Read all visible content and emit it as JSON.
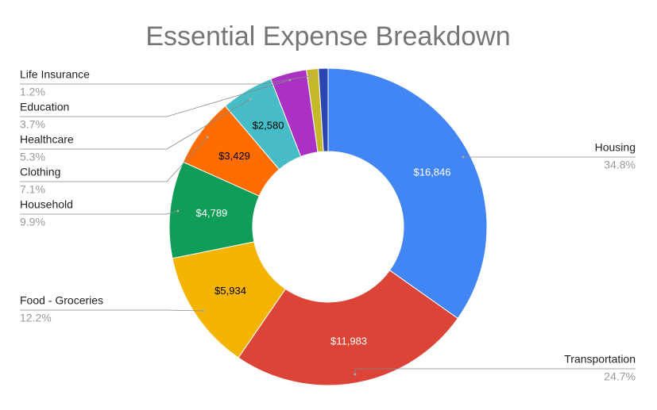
{
  "chart_data": {
    "type": "donut",
    "title": "Essential Expense Breakdown",
    "categories": [
      "Housing",
      "Transportation",
      "Food - Groceries",
      "Household",
      "Clothing",
      "Healthcare",
      "Education",
      "Life Insurance",
      null
    ],
    "values": [
      16846,
      11983,
      5934,
      4789,
      3429,
      2580,
      1791,
      581,
      475
    ],
    "value_labels": [
      "$16,846",
      "$11,983",
      "$5,934",
      "$4,789",
      "$3,429",
      "$2,580",
      null,
      null,
      null
    ],
    "percent_labels": [
      "34.8%",
      "24.7%",
      "12.2%",
      "9.9%",
      "7.1%",
      "5.3%",
      "3.7%",
      "1.2%",
      null
    ],
    "colors": [
      "#4285f4",
      "#db4437",
      "#f4b400",
      "#0f9d58",
      "#ff6d00",
      "#46bdc6",
      "#ab30c4",
      "#c5b92a",
      "#2b46b0"
    ]
  }
}
